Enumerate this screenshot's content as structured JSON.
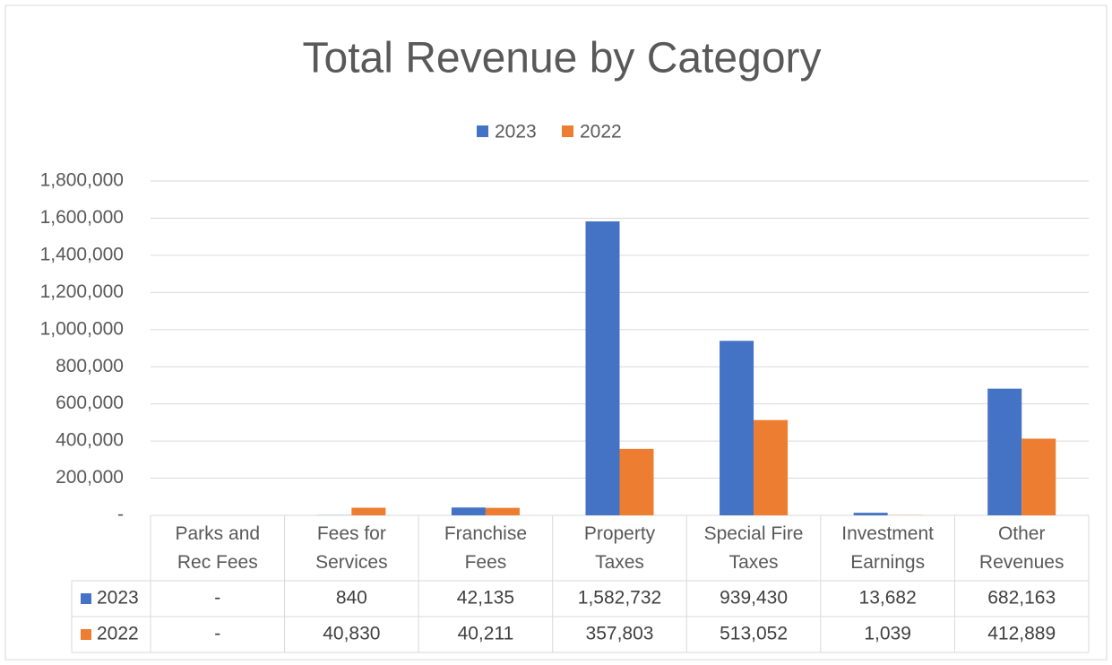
{
  "chart_data": {
    "type": "bar",
    "title": "Total Revenue by Category",
    "categories": [
      "Parks and Rec Fees",
      "Fees for Services",
      "Franchise Fees",
      "Property Taxes",
      "Special Fire Taxes",
      "Investment Earnings",
      "Other Revenues"
    ],
    "series": [
      {
        "name": "2023",
        "color": "#4472c4",
        "values": [
          0,
          840,
          42135,
          1582732,
          939430,
          13682,
          682163
        ],
        "value_labels": [
          "-",
          "840",
          "42,135",
          "1,582,732",
          "939,430",
          "13,682",
          "682,163"
        ]
      },
      {
        "name": "2022",
        "color": "#ed7d31",
        "values": [
          0,
          40830,
          40211,
          357803,
          513052,
          1039,
          412889
        ],
        "value_labels": [
          "-",
          "40,830",
          "40,211",
          "357,803",
          "513,052",
          "1,039",
          "412,889"
        ]
      }
    ],
    "ylim": [
      0,
      1800000
    ],
    "yticks": [
      {
        "value": 0,
        "label": "-"
      },
      {
        "value": 200000,
        "label": "200,000"
      },
      {
        "value": 400000,
        "label": "400,000"
      },
      {
        "value": 600000,
        "label": "600,000"
      },
      {
        "value": 800000,
        "label": "800,000"
      },
      {
        "value": 1000000,
        "label": "1,000,000"
      },
      {
        "value": 1200000,
        "label": "1,200,000"
      },
      {
        "value": 1400000,
        "label": "1,400,000"
      },
      {
        "value": 1600000,
        "label": "1,600,000"
      },
      {
        "value": 1800000,
        "label": "1,800,000"
      }
    ],
    "grid": true,
    "legend": "top"
  }
}
